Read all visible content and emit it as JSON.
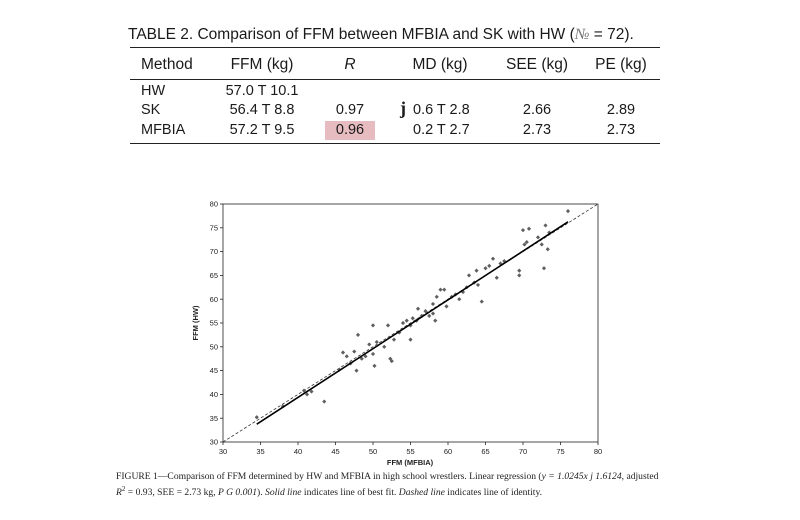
{
  "table": {
    "caption_prefix": "TABLE 2. Comparison of FFM between MFBIA and SK with HW (",
    "caption_symbol": "№",
    "caption_suffix": " = 72).",
    "headers": [
      "Method",
      "FFM (kg)",
      "R",
      "MD (kg)",
      "SEE (kg)",
      "PE (kg)"
    ],
    "rows": [
      {
        "method": "HW",
        "ffm": "57.0 T 10.1",
        "r": "",
        "md_prefix": "",
        "md": "",
        "see": "",
        "pe": ""
      },
      {
        "method": "SK",
        "ffm": "56.4 T 8.8",
        "r": "0.97",
        "md_prefix": "j",
        "md": "0.6 T 2.8",
        "see": "2.66",
        "pe": "2.89"
      },
      {
        "method": "MFBIA",
        "ffm": "57.2 T 9.5",
        "r": "0.96",
        "md_prefix": "",
        "md": "0.2 T 2.7",
        "see": "2.73",
        "pe": "2.73"
      }
    ],
    "highlight_color": "#e6bcc0"
  },
  "figure": {
    "caption_1": "FIGURE 1—Comparison of FFM determined by HW and MFBIA in high school wrestlers. Linear regression (",
    "caption_eq": "y = 1.0245x j 1.6124",
    "caption_2": ", adjusted",
    "caption_r2": "R",
    "caption_3": "2",
    "caption_4": " = 0.93, SEE = 2.73 kg, ",
    "caption_p": "P G 0.001",
    "caption_5": "). ",
    "caption_solid": "Solid line",
    "caption_6": " indicates line of best fit. ",
    "caption_dashed": "Dashed line",
    "caption_7": " indicates line of identity."
  },
  "chart_data": {
    "type": "scatter",
    "xlabel": "FFM (MFBIA)",
    "ylabel": "FFM (HW)",
    "xlim": [
      30,
      80
    ],
    "ylim": [
      30,
      80
    ],
    "xticks": [
      30,
      35,
      40,
      45,
      50,
      55,
      60,
      65,
      70,
      75,
      80
    ],
    "yticks": [
      30,
      35,
      40,
      45,
      50,
      55,
      60,
      65,
      70,
      75,
      80
    ],
    "regression": {
      "slope": 1.0245,
      "intercept": -1.6124,
      "x_range": [
        34.5,
        76
      ]
    },
    "identity_line": true,
    "grid": false,
    "point_color": "#606060",
    "points": [
      [
        34.5,
        35.2
      ],
      [
        38.0,
        37.5
      ],
      [
        40.8,
        40.8
      ],
      [
        41.2,
        40.0
      ],
      [
        41.8,
        40.6
      ],
      [
        43.5,
        38.5
      ],
      [
        45.5,
        45.2
      ],
      [
        46.0,
        48.8
      ],
      [
        46.5,
        48.0
      ],
      [
        47.0,
        46.5
      ],
      [
        47.5,
        49.0
      ],
      [
        47.8,
        45.0
      ],
      [
        48.0,
        52.5
      ],
      [
        48.5,
        47.5
      ],
      [
        49.0,
        48.0
      ],
      [
        49.5,
        50.5
      ],
      [
        50.0,
        54.5
      ],
      [
        50.0,
        48.5
      ],
      [
        50.2,
        46.0
      ],
      [
        50.5,
        51.0
      ],
      [
        51.5,
        50.0
      ],
      [
        52.0,
        54.5
      ],
      [
        52.3,
        47.5
      ],
      [
        52.5,
        47.0
      ],
      [
        52.8,
        51.5
      ],
      [
        53.5,
        53.0
      ],
      [
        54.0,
        55.0
      ],
      [
        54.5,
        55.5
      ],
      [
        55.0,
        54.5
      ],
      [
        55.0,
        51.5
      ],
      [
        55.3,
        56.0
      ],
      [
        55.8,
        55.5
      ],
      [
        56.0,
        58.0
      ],
      [
        56.5,
        56.5
      ],
      [
        57.0,
        57.5
      ],
      [
        57.5,
        56.5
      ],
      [
        58.0,
        57.0
      ],
      [
        58.0,
        59.0
      ],
      [
        58.3,
        55.5
      ],
      [
        58.5,
        60.5
      ],
      [
        59.0,
        62.0
      ],
      [
        59.5,
        62.0
      ],
      [
        59.8,
        58.5
      ],
      [
        60.5,
        60.5
      ],
      [
        61.0,
        61.0
      ],
      [
        61.5,
        60.0
      ],
      [
        62.0,
        61.5
      ],
      [
        62.5,
        62.5
      ],
      [
        62.8,
        65.0
      ],
      [
        63.5,
        63.5
      ],
      [
        63.8,
        66.0
      ],
      [
        64.0,
        63.0
      ],
      [
        64.5,
        59.5
      ],
      [
        65.0,
        66.5
      ],
      [
        65.5,
        67.0
      ],
      [
        66.0,
        68.5
      ],
      [
        66.5,
        64.5
      ],
      [
        67.0,
        67.5
      ],
      [
        67.5,
        68.0
      ],
      [
        69.5,
        66.0
      ],
      [
        69.5,
        65.0
      ],
      [
        70.0,
        74.5
      ],
      [
        70.2,
        71.5
      ],
      [
        70.5,
        72.0
      ],
      [
        70.8,
        74.8
      ],
      [
        72.0,
        73.0
      ],
      [
        72.5,
        71.5
      ],
      [
        72.8,
        66.5
      ],
      [
        73.0,
        75.5
      ],
      [
        73.3,
        70.5
      ],
      [
        73.5,
        74.0
      ],
      [
        76.0,
        78.5
      ]
    ]
  }
}
